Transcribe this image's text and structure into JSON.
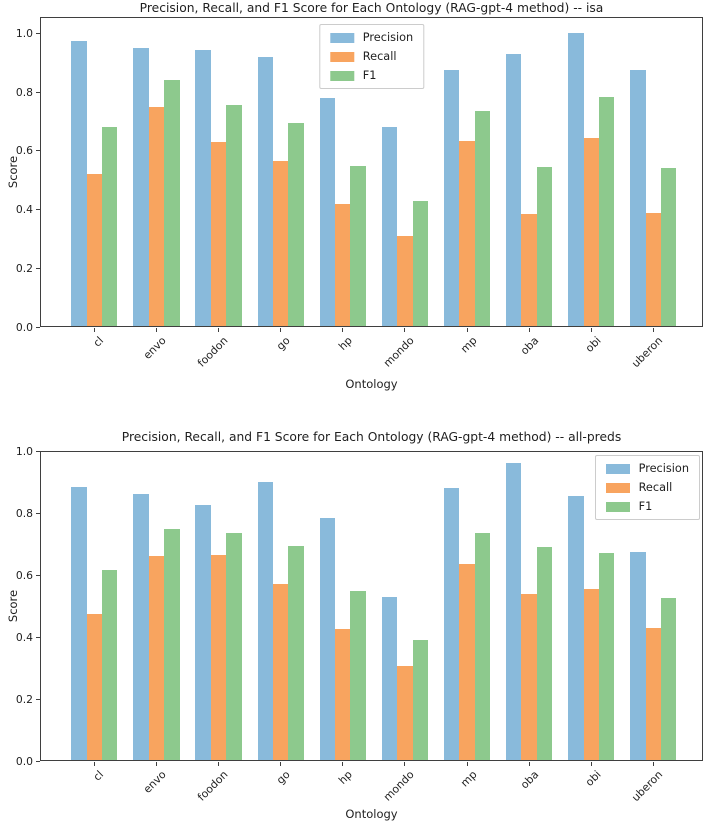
{
  "figure": {
    "background": "#ffffff",
    "text_color": "#1f1f1f",
    "axis_color": "#3f3f3f"
  },
  "colors": {
    "precision": "#89badb",
    "recall": "#f8a45f",
    "f1": "#8dc98d"
  },
  "chart_data": [
    {
      "type": "bar",
      "title": "Precision, Recall, and F1 Score for Each Ontology (RAG-gpt-4 method) -- isa",
      "xlabel": "Ontology",
      "ylabel": "Score",
      "categories": [
        "cl",
        "envo",
        "foodon",
        "go",
        "hp",
        "mondo",
        "mp",
        "oba",
        "obi",
        "uberon"
      ],
      "yticks": [
        "0.0",
        "0.2",
        "0.4",
        "0.6",
        "0.8",
        "1.0"
      ],
      "ylim": [
        0,
        1.056
      ],
      "grid": false,
      "legend_position": "upper center",
      "legend_entries": [
        "Precision",
        "Recall",
        "F1"
      ],
      "series": [
        {
          "name": "Precision",
          "color": "#89badb",
          "values": [
            0.975,
            0.95,
            0.945,
            0.92,
            0.78,
            0.68,
            0.875,
            0.93,
            1.0,
            0.875
          ]
        },
        {
          "name": "Recall",
          "color": "#f8a45f",
          "values": [
            0.52,
            0.75,
            0.63,
            0.565,
            0.42,
            0.31,
            0.635,
            0.385,
            0.645,
            0.39
          ]
        },
        {
          "name": "F1",
          "color": "#8dc98d",
          "values": [
            0.68,
            0.84,
            0.755,
            0.695,
            0.55,
            0.43,
            0.735,
            0.545,
            0.785,
            0.54
          ]
        }
      ]
    },
    {
      "type": "bar",
      "title": "Precision, Recall, and F1 Score for Each Ontology (RAG-gpt-4 method) -- all-preds",
      "xlabel": "Ontology",
      "ylabel": "Score",
      "categories": [
        "cl",
        "envo",
        "foodon",
        "go",
        "hp",
        "mondo",
        "mp",
        "oba",
        "obi",
        "uberon"
      ],
      "yticks": [
        "0.0",
        "0.2",
        "0.4",
        "0.6",
        "0.8",
        "1.0"
      ],
      "ylim": [
        0,
        1.0
      ],
      "grid": false,
      "legend_position": "upper right",
      "legend_entries": [
        "Precision",
        "Recall",
        "F1"
      ],
      "series": [
        {
          "name": "Precision",
          "color": "#89badb",
          "values": [
            0.885,
            0.86,
            0.825,
            0.9,
            0.785,
            0.53,
            0.88,
            0.96,
            0.855,
            0.675
          ]
        },
        {
          "name": "Recall",
          "color": "#f8a45f",
          "values": [
            0.475,
            0.66,
            0.665,
            0.57,
            0.425,
            0.305,
            0.635,
            0.54,
            0.555,
            0.43
          ]
        },
        {
          "name": "F1",
          "color": "#8dc98d",
          "values": [
            0.615,
            0.75,
            0.735,
            0.695,
            0.55,
            0.39,
            0.735,
            0.69,
            0.67,
            0.525
          ]
        }
      ]
    }
  ]
}
